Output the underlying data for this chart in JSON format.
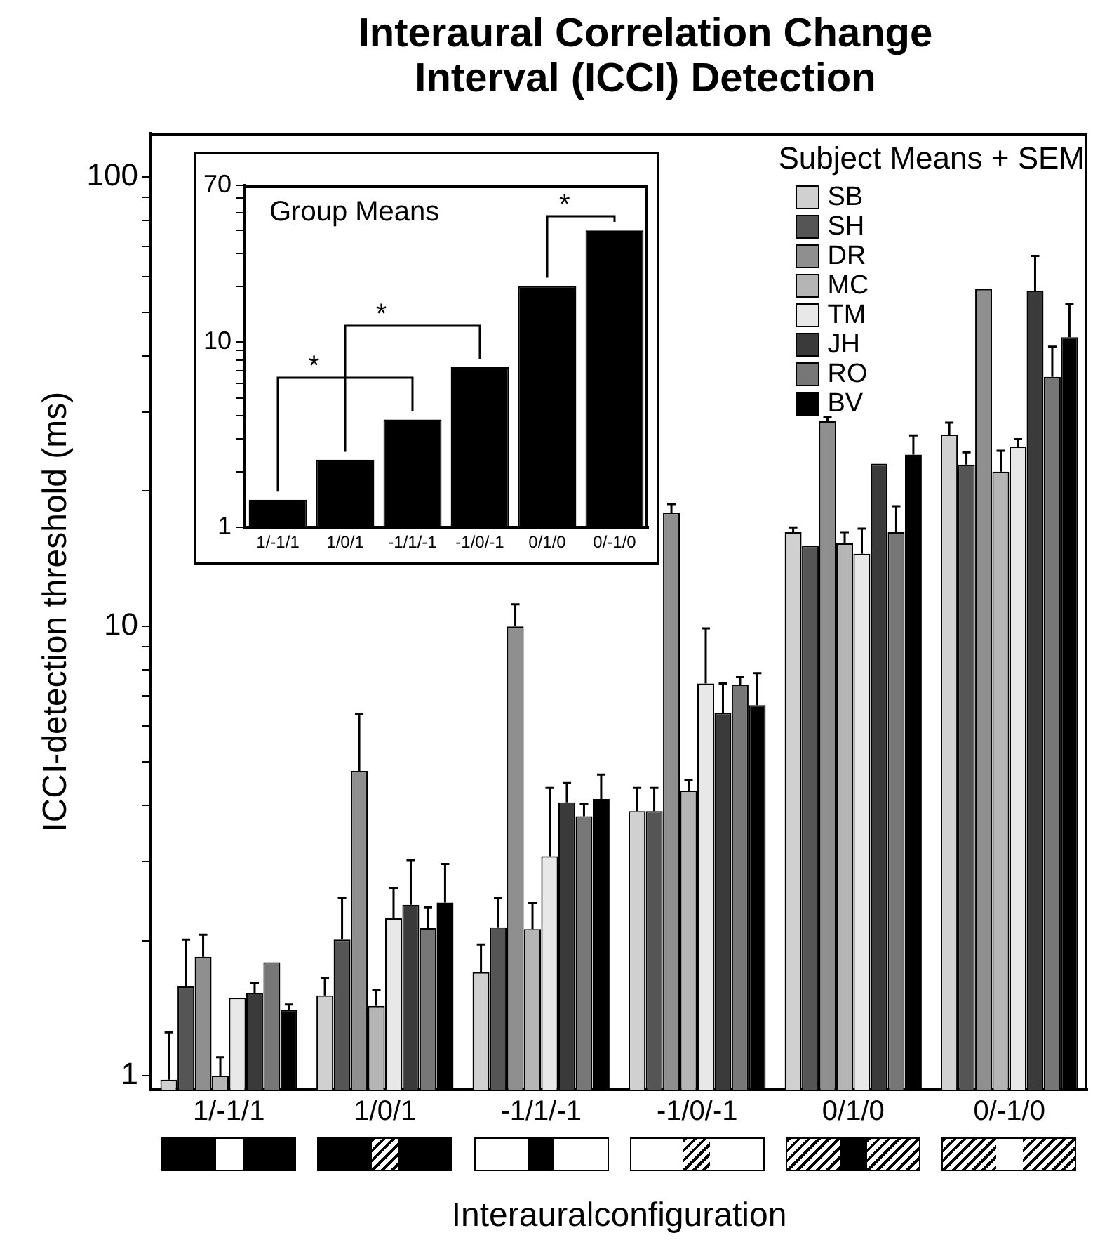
{
  "chart_data": [
    {
      "type": "bar",
      "title": "Interaural Correlation Change Interval (ICCI) Detection",
      "xlabel": "Interauralconfiguration",
      "ylabel": "ICCI-detection threshold (ms)",
      "legend_title": "Subject Means + SEM",
      "legend": "top right",
      "log": true,
      "grid": false,
      "categories": [
        "1/-1/1",
        "1/0/1",
        "-1/1/-1",
        "-1/0/-1",
        "0/1/0",
        "0/-1/0"
      ],
      "ylim": [
        0.93,
        125
      ],
      "yticks": [
        1,
        {
          "value": 2,
          "label": null
        },
        {
          "value": 3,
          "label": null
        },
        {
          "value": 4,
          "label": null
        },
        {
          "value": 5,
          "label": null
        },
        {
          "value": 6,
          "label": null
        },
        {
          "value": 7,
          "label": null
        },
        {
          "value": 8,
          "label": null
        },
        {
          "value": 9,
          "label": null
        },
        10,
        {
          "value": 20,
          "label": null
        },
        {
          "value": 30,
          "label": null
        },
        {
          "value": 40,
          "label": null
        },
        {
          "value": 50,
          "label": null
        },
        {
          "value": 60,
          "label": null
        },
        {
          "value": 70,
          "label": null
        },
        {
          "value": 80,
          "label": null
        },
        {
          "value": 90,
          "label": null
        },
        100
      ],
      "series": [
        {
          "name": "SB",
          "color": "#d0d0d0",
          "values": [
            0.98,
            1.51,
            1.7,
            3.88,
            16.2,
            26.7
          ],
          "errors": [
            [
              0.98,
              1.25
            ],
            [
              1.51,
              1.65
            ],
            [
              1.7,
              1.96
            ],
            [
              3.88,
              4.37
            ],
            [
              16.2,
              16.6
            ],
            [
              26.7,
              28.4
            ]
          ]
        },
        {
          "name": "SH",
          "color": "#555555",
          "values": [
            1.58,
            2.01,
            2.14,
            3.88,
            15.1,
            22.9
          ],
          "errors": [
            [
              1.58,
              2.01
            ],
            [
              2.01,
              2.49
            ],
            [
              2.14,
              2.49
            ],
            [
              3.88,
              4.37
            ],
            null,
            [
              22.9,
              24.4
            ]
          ]
        },
        {
          "name": "DR",
          "color": "#8f8f8f",
          "values": [
            1.84,
            4.77,
            10.0,
            17.9,
            28.6,
            56.3
          ],
          "errors": [
            [
              1.84,
              2.06
            ],
            [
              4.77,
              6.39
            ],
            [
              10.0,
              11.2
            ],
            [
              17.9,
              18.7
            ],
            [
              28.6,
              29.2
            ],
            null
          ]
        },
        {
          "name": "MC",
          "color": "#b5b5b5",
          "values": [
            1.0,
            1.43,
            2.12,
            4.31,
            15.3,
            22.1
          ],
          "errors": [
            [
              1.0,
              1.1
            ],
            [
              1.43,
              1.55
            ],
            [
              2.12,
              2.43
            ],
            [
              4.31,
              4.56
            ],
            [
              15.3,
              16.2
            ],
            [
              22.1,
              24.6
            ]
          ]
        },
        {
          "name": "TM",
          "color": "#e8e8e8",
          "values": [
            1.49,
            2.24,
            3.08,
            7.46,
            14.5,
            25.1
          ],
          "errors": [
            null,
            [
              2.24,
              2.62
            ],
            [
              3.08,
              4.37
            ],
            [
              7.46,
              9.9
            ],
            [
              14.5,
              16.5
            ],
            [
              25.1,
              26.1
            ]
          ]
        },
        {
          "name": "JH",
          "color": "#3a3a3a",
          "values": [
            1.53,
            2.4,
            4.06,
            6.42,
            23.0,
            55.7
          ],
          "errors": [
            [
              1.53,
              1.61
            ],
            [
              2.4,
              3.02
            ],
            [
              4.06,
              4.48
            ],
            [
              6.42,
              7.46
            ],
            null,
            [
              55.7,
              66.7
            ]
          ]
        },
        {
          "name": "RO",
          "color": "#777777",
          "values": [
            1.79,
            2.13,
            3.78,
            7.42,
            16.2,
            35.9
          ],
          "errors": [
            null,
            [
              2.13,
              2.37
            ],
            [
              3.78,
              4.03
            ],
            [
              7.42,
              7.71
            ],
            [
              16.2,
              18.5
            ],
            [
              35.9,
              41.9
            ]
          ]
        },
        {
          "name": "BV",
          "color": "#000000",
          "values": [
            1.4,
            2.43,
            4.13,
            6.68,
            24.1,
            44.0
          ],
          "errors": [
            [
              1.4,
              1.44
            ],
            [
              2.43,
              2.96
            ],
            [
              4.13,
              4.68
            ],
            [
              6.68,
              7.87
            ],
            [
              24.1,
              26.6
            ],
            [
              44.0,
              52.2
            ]
          ]
        }
      ]
    },
    {
      "type": "bar",
      "log": true,
      "grid": false,
      "categories": [
        "1/-1/1",
        "1/0/1",
        "-1/1/-1",
        "-1/0/-1",
        "0/1/0",
        "0/-1/0"
      ],
      "values": [
        1.41,
        2.32,
        3.82,
        7.31,
        20.0,
        40.0
      ],
      "color": "#000000",
      "ylim": [
        1,
        70
      ],
      "yticks": [
        1,
        {
          "value": 2,
          "label": null
        },
        {
          "value": 3,
          "label": null
        },
        {
          "value": 4,
          "label": null
        },
        {
          "value": 5,
          "label": null
        },
        {
          "value": 6,
          "label": null
        },
        {
          "value": 7,
          "label": null
        },
        {
          "value": 8,
          "label": null
        },
        {
          "value": 9,
          "label": null
        },
        10,
        {
          "value": 20,
          "label": null
        },
        {
          "value": 30,
          "label": null
        },
        {
          "value": 40,
          "label": null
        },
        {
          "value": 50,
          "label": null
        },
        {
          "value": 60,
          "label": null
        },
        70
      ],
      "annotations": [
        "Group Means",
        "*",
        "*",
        "*"
      ]
    }
  ]
}
